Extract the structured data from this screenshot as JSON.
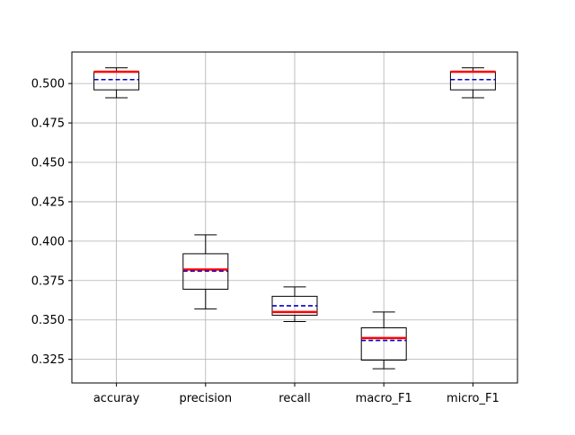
{
  "colors": {
    "background": "#ffffff",
    "grid": "#b0b0b0",
    "box": "#000000",
    "median": "#ff0000",
    "mean": "#0000cc"
  },
  "chart_data": {
    "type": "box",
    "title": "",
    "xlabel": "",
    "ylabel": "",
    "grid": true,
    "ylim": [
      0.31,
      0.52
    ],
    "yticks": [
      0.325,
      0.35,
      0.375,
      0.4,
      0.425,
      0.45,
      0.475,
      0.5
    ],
    "ytick_labels": [
      "0.325",
      "0.350",
      "0.375",
      "0.400",
      "0.425",
      "0.450",
      "0.475",
      "0.500"
    ],
    "categories": [
      "accuray",
      "precision",
      "recall",
      "macro_F1",
      "micro_F1"
    ],
    "boxes": [
      {
        "label": "accuray",
        "whisker_low": 0.491,
        "q1": 0.496,
        "median": 0.5075,
        "mean": 0.5025,
        "q3": 0.5075,
        "whisker_high": 0.51
      },
      {
        "label": "precision",
        "whisker_low": 0.357,
        "q1": 0.3695,
        "median": 0.382,
        "mean": 0.381,
        "q3": 0.392,
        "whisker_high": 0.404
      },
      {
        "label": "recall",
        "whisker_low": 0.349,
        "q1": 0.353,
        "median": 0.355,
        "mean": 0.359,
        "q3": 0.365,
        "whisker_high": 0.371
      },
      {
        "label": "macro_F1",
        "whisker_low": 0.319,
        "q1": 0.3245,
        "median": 0.3385,
        "mean": 0.337,
        "q3": 0.345,
        "whisker_high": 0.355
      },
      {
        "label": "micro_F1",
        "whisker_low": 0.491,
        "q1": 0.496,
        "median": 0.5075,
        "mean": 0.5025,
        "q3": 0.5075,
        "whisker_high": 0.51
      }
    ]
  }
}
